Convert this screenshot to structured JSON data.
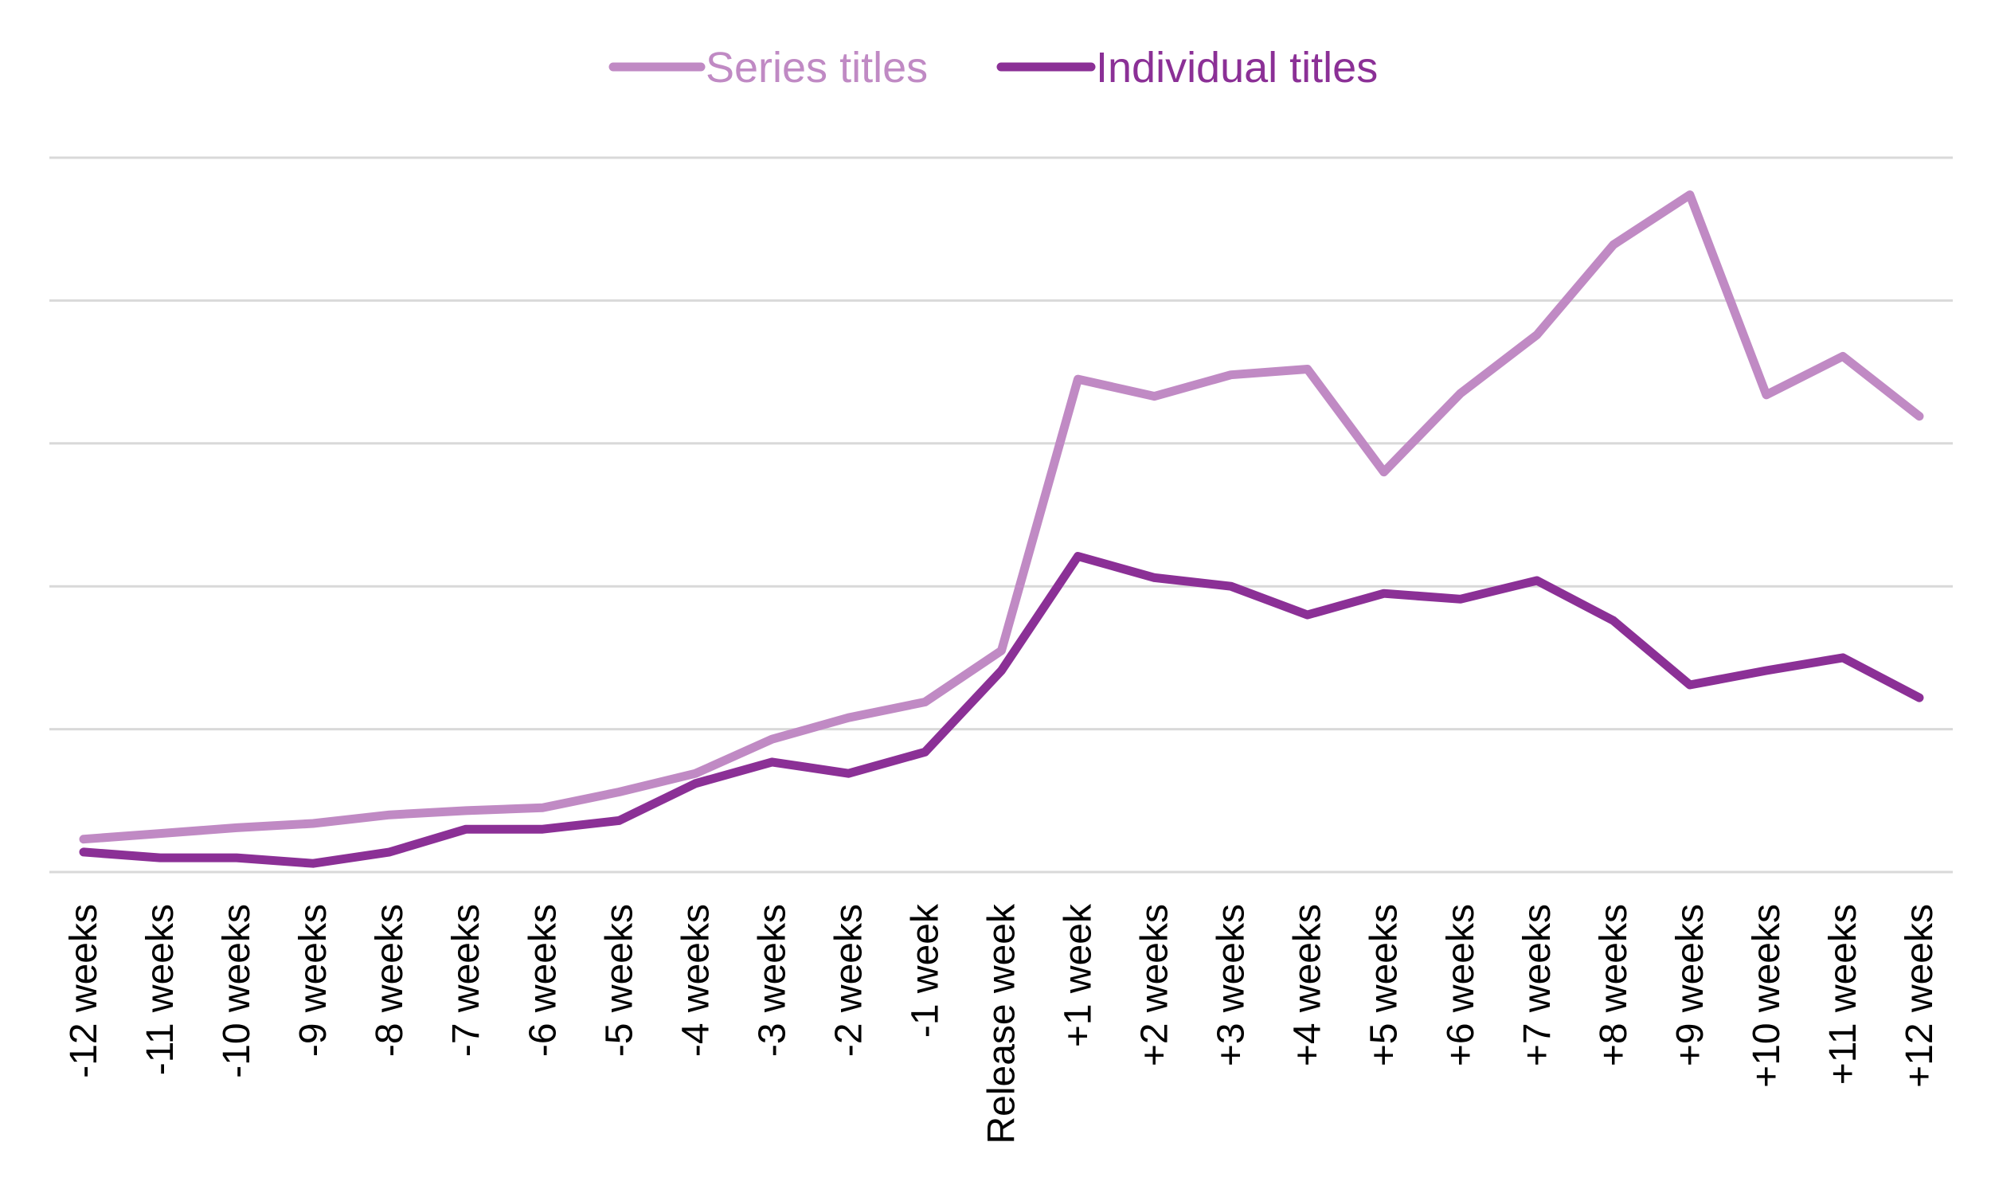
{
  "chart_data": {
    "type": "line",
    "title": "",
    "xlabel": "",
    "ylabel": "",
    "categories": [
      "-12 weeks",
      "-11 weeks",
      "-10 weeks",
      "-9 weeks",
      "-8 weeks",
      "-7 weeks",
      "-6 weeks",
      "-5 weeks",
      "-4 weeks",
      "-3 weeks",
      "-2 weeks",
      "-1 week",
      "Release week",
      "+1 week",
      "+2 weeks",
      "+3 weeks",
      "+4 weeks",
      "+5 weeks",
      "+6 weeks",
      "+7 weeks",
      "+8 weeks",
      "+9 weeks",
      "+10 weeks",
      "+11 weeks",
      "+12 weeks"
    ],
    "ylim": [
      0,
      5
    ],
    "y_ticks": [
      0,
      1,
      2,
      3,
      4,
      5
    ],
    "y_tick_labels_shown": false,
    "grid": true,
    "legend_position": "top-center",
    "series": [
      {
        "name": "Series titles",
        "color": "#c08ac4",
        "values": [
          0.23,
          0.27,
          0.31,
          0.34,
          0.4,
          0.43,
          0.45,
          0.56,
          0.69,
          0.93,
          1.08,
          1.19,
          1.55,
          3.45,
          3.33,
          3.48,
          3.52,
          2.8,
          3.35,
          3.76,
          4.39,
          4.74,
          3.34,
          3.61,
          3.19
        ]
      },
      {
        "name": "Individual titles",
        "color": "#8b3096",
        "values": [
          0.14,
          0.1,
          0.1,
          0.06,
          0.14,
          0.3,
          0.3,
          0.36,
          0.62,
          0.77,
          0.69,
          0.84,
          1.41,
          2.21,
          2.06,
          2.0,
          1.8,
          1.95,
          1.91,
          2.04,
          1.76,
          1.31,
          1.41,
          1.5,
          1.22
        ]
      }
    ]
  }
}
